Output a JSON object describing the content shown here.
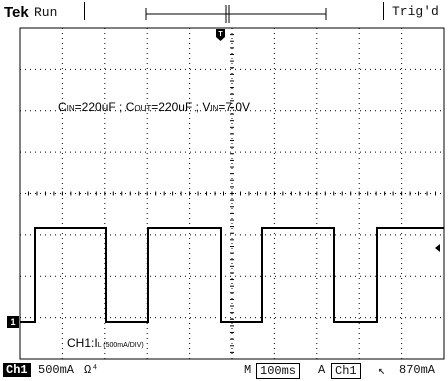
{
  "header": {
    "brand": "Tek",
    "acquisition_state": "Run",
    "trigger_status": "Trig'd"
  },
  "annotations": {
    "cin_prefix": "C",
    "cin_sub": "IN",
    "cin_value": "=220uF ; ",
    "cout_prefix": "C",
    "cout_sub": "OUT",
    "cout_value": "=220uF ; ",
    "vin_prefix": "V",
    "vin_sub": "IN",
    "vin_value": "=7.0V",
    "channel_label": "CH1:",
    "channel_signal_prefix": "I",
    "channel_signal_sub": "L",
    "channel_scale": " (500mA/DIV)"
  },
  "channel_marker": "1",
  "footer": {
    "channel": "Ch1",
    "volts_div": "500mA",
    "coupling_symbol": "Ω⁴",
    "time_prefix": "M",
    "time_div": "100ms",
    "trigger_mode": "A",
    "trigger_source": "Ch1",
    "trigger_slope": "↖",
    "trigger_level": "870mA"
  },
  "colors": {
    "background": "#ffffff",
    "trace": "#000000",
    "grid": "#000000"
  }
}
